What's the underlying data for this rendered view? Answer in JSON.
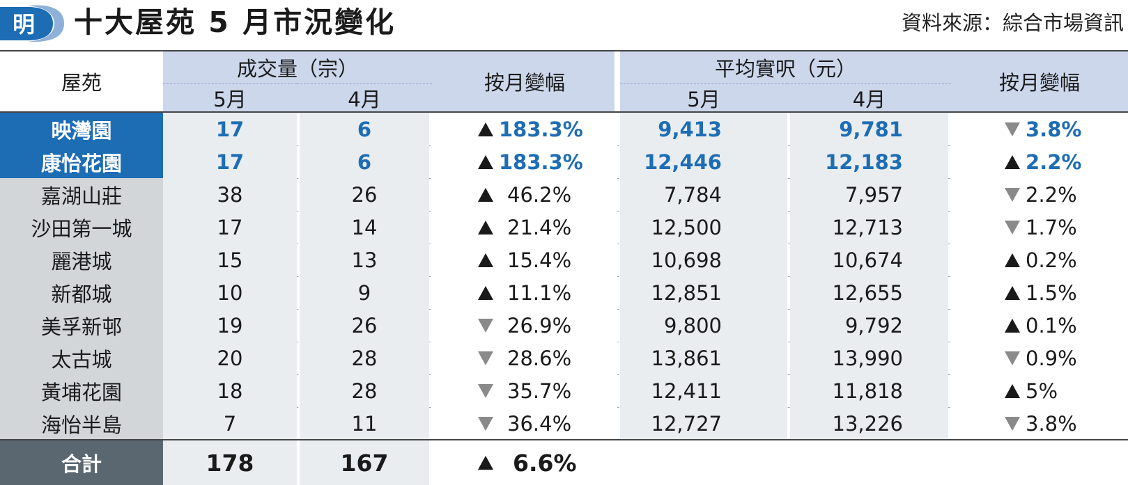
{
  "header": {
    "logo_text": "明",
    "title": "十大屋苑 5 月市況變化",
    "source": "資料來源：綜合市場資訊"
  },
  "columns": {
    "estate": "屋苑",
    "volume_group": "成交量（宗）",
    "price_group": "平均實呎（元）",
    "may": "5月",
    "april": "4月",
    "mom_change": "按月變幅"
  },
  "rows": [
    {
      "name": "映灣園",
      "vol_may": "17",
      "vol_apr": "6",
      "vol_dir": "up",
      "vol_chg": "183.3%",
      "price_may": "9,413",
      "price_apr": "9,781",
      "price_dir": "down",
      "price_chg": "3.8%",
      "highlight": true
    },
    {
      "name": "康怡花園",
      "vol_may": "17",
      "vol_apr": "6",
      "vol_dir": "up",
      "vol_chg": "183.3%",
      "price_may": "12,446",
      "price_apr": "12,183",
      "price_dir": "up",
      "price_chg": "2.2%",
      "highlight": true
    },
    {
      "name": "嘉湖山莊",
      "vol_may": "38",
      "vol_apr": "26",
      "vol_dir": "up",
      "vol_chg": "46.2%",
      "price_may": "7,784",
      "price_apr": "7,957",
      "price_dir": "down",
      "price_chg": "2.2%",
      "highlight": false
    },
    {
      "name": "沙田第一城",
      "vol_may": "17",
      "vol_apr": "14",
      "vol_dir": "up",
      "vol_chg": "21.4%",
      "price_may": "12,500",
      "price_apr": "12,713",
      "price_dir": "down",
      "price_chg": "1.7%",
      "highlight": false
    },
    {
      "name": "麗港城",
      "vol_may": "15",
      "vol_apr": "13",
      "vol_dir": "up",
      "vol_chg": "15.4%",
      "price_may": "10,698",
      "price_apr": "10,674",
      "price_dir": "up",
      "price_chg": "0.2%",
      "highlight": false
    },
    {
      "name": "新都城",
      "vol_may": "10",
      "vol_apr": "9",
      "vol_dir": "up",
      "vol_chg": "11.1%",
      "price_may": "12,851",
      "price_apr": "12,655",
      "price_dir": "up",
      "price_chg": "1.5%",
      "highlight": false
    },
    {
      "name": "美孚新邨",
      "vol_may": "19",
      "vol_apr": "26",
      "vol_dir": "down",
      "vol_chg": "26.9%",
      "price_may": "9,800",
      "price_apr": "9,792",
      "price_dir": "up",
      "price_chg": "0.1%",
      "highlight": false
    },
    {
      "name": "太古城",
      "vol_may": "20",
      "vol_apr": "28",
      "vol_dir": "down",
      "vol_chg": "28.6%",
      "price_may": "13,861",
      "price_apr": "13,990",
      "price_dir": "down",
      "price_chg": "0.9%",
      "highlight": false
    },
    {
      "name": "黃埔花園",
      "vol_may": "18",
      "vol_apr": "28",
      "vol_dir": "down",
      "vol_chg": "35.7%",
      "price_may": "12,411",
      "price_apr": "11,818",
      "price_dir": "up",
      "price_chg": "5%",
      "highlight": false
    },
    {
      "name": "海怡半島",
      "vol_may": "7",
      "vol_apr": "11",
      "vol_dir": "down",
      "vol_chg": "36.4%",
      "price_may": "12,727",
      "price_apr": "13,226",
      "price_dir": "down",
      "price_chg": "3.8%",
      "highlight": false
    }
  ],
  "total": {
    "name": "合計",
    "vol_may": "178",
    "vol_apr": "167",
    "vol_dir": "up",
    "vol_chg": "6.6%"
  },
  "colors": {
    "highlight_blue": "#1d6db5",
    "header_blue": "#ccd7ec",
    "total_grey": "#5b6770",
    "up_arrow": "#1a1a1a",
    "down_arrow": "#8a8a8a"
  }
}
